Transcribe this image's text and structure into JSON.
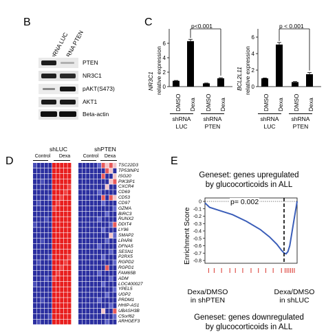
{
  "panels": {
    "b": "B",
    "c": "C",
    "d": "D",
    "e": "E"
  },
  "blot": {
    "lanes": [
      "shRNA LUC",
      "shRNA PTEN"
    ],
    "bands": [
      "PTEN",
      "NR3C1",
      "pAKT(S473)",
      "AKT1",
      "Beta-actin"
    ]
  },
  "bar_left": {
    "ylabel_gene": "NR3C1",
    "ylabel_rest": "relative expression",
    "pvalue": "p<0.001",
    "xticks": [
      "DMSO",
      "Dexa",
      "DMSO",
      "Dexa"
    ],
    "groups": [
      {
        "line1": "shRNA",
        "line2": "LUC"
      },
      {
        "line1": "shRNA",
        "line2": "PTEN"
      }
    ]
  },
  "bar_right": {
    "ylabel_gene": "BCL2L11",
    "ylabel_rest": "relative expression",
    "pvalue": "p < 0.001",
    "xticks": [
      "DMSO",
      "Dexa",
      "DMSO",
      "Dexa"
    ],
    "groups": [
      {
        "line1": "shRNA",
        "line2": "LUC"
      },
      {
        "line1": "shRNA",
        "line2": "PTEN"
      }
    ]
  },
  "chart_data": [
    {
      "type": "bar",
      "categories": [
        "DMSO",
        "Dexa",
        "DMSO",
        "Dexa"
      ],
      "values": [
        0.8,
        6.3,
        0.45,
        1.15
      ],
      "errors": [
        0.05,
        0.25,
        0.04,
        0.08
      ],
      "ylabel": "NR3C1 relative expression",
      "yticks": [
        0,
        2,
        4,
        6
      ],
      "ylim": [
        0,
        8
      ]
    },
    {
      "type": "bar",
      "categories": [
        "DMSO",
        "Dexa",
        "DMSO",
        "Dexa"
      ],
      "values": [
        1.0,
        5.1,
        0.55,
        1.5
      ],
      "errors": [
        0.05,
        0.25,
        0.06,
        0.2
      ],
      "ylabel": "BCL2L11 relative expression",
      "yticks": [
        0,
        2,
        4,
        6
      ],
      "ylim": [
        0,
        7
      ]
    },
    {
      "type": "line",
      "ylabel": "Enrichment Score",
      "yticks": [
        "0",
        "-0.1",
        "-0.2",
        "-0.3",
        "-0.4",
        "-0.5",
        "-0.6",
        "-0.7",
        "-0.8"
      ],
      "ylim": [
        -0.8,
        0.05
      ],
      "x": [
        0,
        0.05,
        0.15,
        0.3,
        0.45,
        0.6,
        0.7,
        0.78,
        0.83,
        0.86,
        0.88,
        0.9,
        0.92,
        0.96,
        1.0
      ],
      "y": [
        -0.02,
        -0.08,
        -0.12,
        -0.18,
        -0.27,
        -0.38,
        -0.48,
        -0.58,
        -0.66,
        -0.7,
        -0.71,
        -0.68,
        -0.6,
        -0.3,
        0.0
      ],
      "pvalue": "p= 0.002"
    }
  ],
  "heatmap": {
    "groups": [
      "shLUC",
      "shPTEN"
    ],
    "conditions": [
      "Control",
      "Dexa",
      "Control",
      "Dexa"
    ],
    "genes": [
      "TSC22D3",
      "TP53INP1",
      "ISG20",
      "PIK3IP1",
      "CXCR4",
      "CD69",
      "CD53",
      "CD97",
      "GZMA",
      "BIRC3",
      "RUNX2",
      "DDIT4",
      "LY96",
      "SMAP2",
      "LPAR6",
      "DFNA5",
      "SESN1",
      "P2RX5",
      "RGPD2",
      "RGPD1",
      "FAM65B",
      "ADM",
      "LOC400027",
      "YPEL5",
      "UGP2",
      "PRDM1",
      "HHIP-AS1",
      "UBASH3B",
      "C5orf62",
      "ARHGEF3"
    ]
  },
  "gsea": {
    "title1_line1": "Geneset: genes upregulated",
    "title1_line2": "by glucocorticoids in ALL",
    "pvalue": "p= 0.002",
    "ylabel": "Enrichment Score",
    "yticks": [
      "0",
      "-0.1",
      "-0.2",
      "-0.3",
      "-0.4",
      "-0.5",
      "-0.6",
      "-0.7",
      "-0.8"
    ],
    "left_label_line1": "Dexa/DMSO",
    "left_label_line2": "in shPTEN",
    "right_label_line1": "Dexa/DMSO",
    "right_label_line2": "in shLUC",
    "title2_line1": "Geneset: genes downregulated",
    "title2_line2": "by glucocorticoids in ALL"
  },
  "colors": {
    "heat_red": "#e81e1e",
    "heat_blue": "#2b2fa0",
    "curve": "#3a5db8",
    "hit": "#d9332b"
  }
}
